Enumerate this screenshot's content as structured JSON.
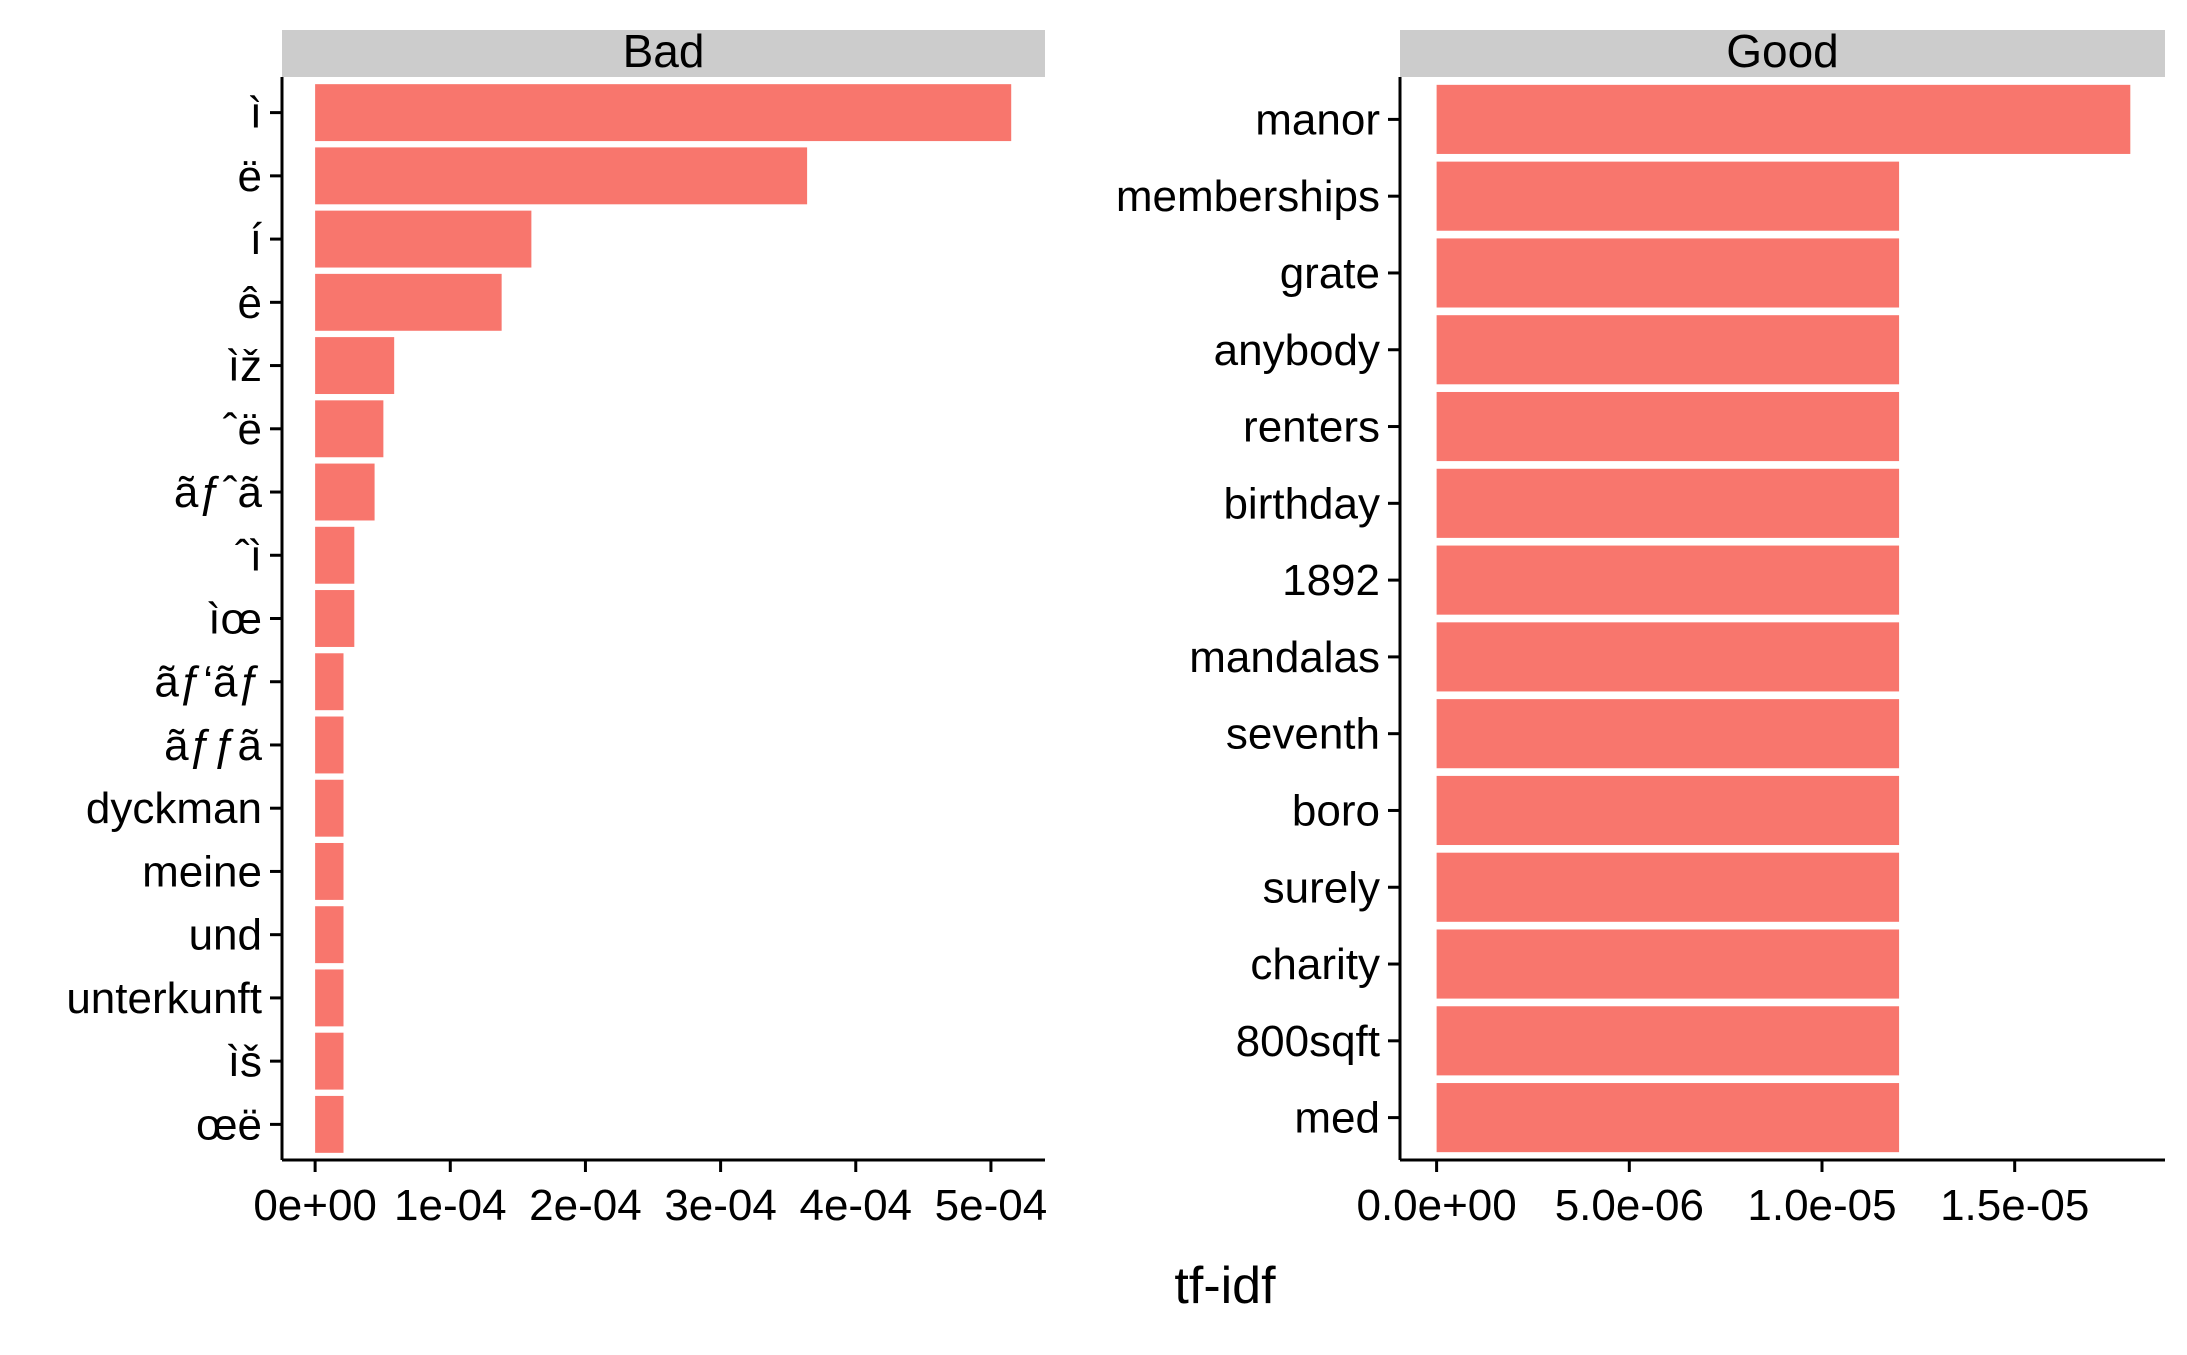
{
  "chart_data": {
    "type": "bar",
    "orientation": "horizontal",
    "xlabel": "tf-idf",
    "ylabel": "",
    "bar_color": "#F8766D",
    "strip_color": "#CCCCCC",
    "grid": false,
    "legend": "none",
    "panels": [
      {
        "title": "Bad",
        "categories": [
          "ì",
          "ë",
          "í",
          "ê",
          "ìž",
          "ˆë",
          "ãƒˆã",
          "ˆì",
          "ìœ",
          "ãƒ‘ãƒ",
          "ãƒƒã",
          "dyckman",
          "meine",
          "und",
          "unterkunft",
          "ìš",
          "œë"
        ],
        "values": [
          0.000515,
          0.000364,
          0.00016,
          0.000138,
          5.85e-05,
          5.05e-05,
          4.4e-05,
          2.9e-05,
          2.9e-05,
          2.1e-05,
          2.1e-05,
          2.1e-05,
          2.1e-05,
          2.1e-05,
          2.1e-05,
          2.1e-05,
          2.1e-05
        ],
        "xlim": [
          -2.45e-05,
          0.00054
        ],
        "ticks": [
          0,
          0.0001,
          0.0002,
          0.0003,
          0.0004,
          0.0005
        ],
        "tick_labels": [
          "0e+00",
          "1e-04",
          "2e-04",
          "3e-04",
          "4e-04",
          "5e-04"
        ]
      },
      {
        "title": "Good",
        "categories": [
          "manor",
          "memberships",
          "grate",
          "anybody",
          "renters",
          "birthday",
          "1892",
          "mandalas",
          "seventh",
          "boro",
          "surely",
          "charity",
          "800sqft",
          "med"
        ],
        "values": [
          1.8e-05,
          1.2e-05,
          1.2e-05,
          1.2e-05,
          1.2e-05,
          1.2e-05,
          1.2e-05,
          1.2e-05,
          1.2e-05,
          1.2e-05,
          1.2e-05,
          1.2e-05,
          1.2e-05,
          1.2e-05
        ],
        "xlim": [
          -9.5e-07,
          1.89e-05
        ],
        "ticks": [
          0,
          5e-06,
          1e-05,
          1.5e-05
        ],
        "tick_labels": [
          "0.0e+00",
          "5.0e-06",
          "1.0e-05",
          "1.5e-05"
        ]
      }
    ]
  }
}
